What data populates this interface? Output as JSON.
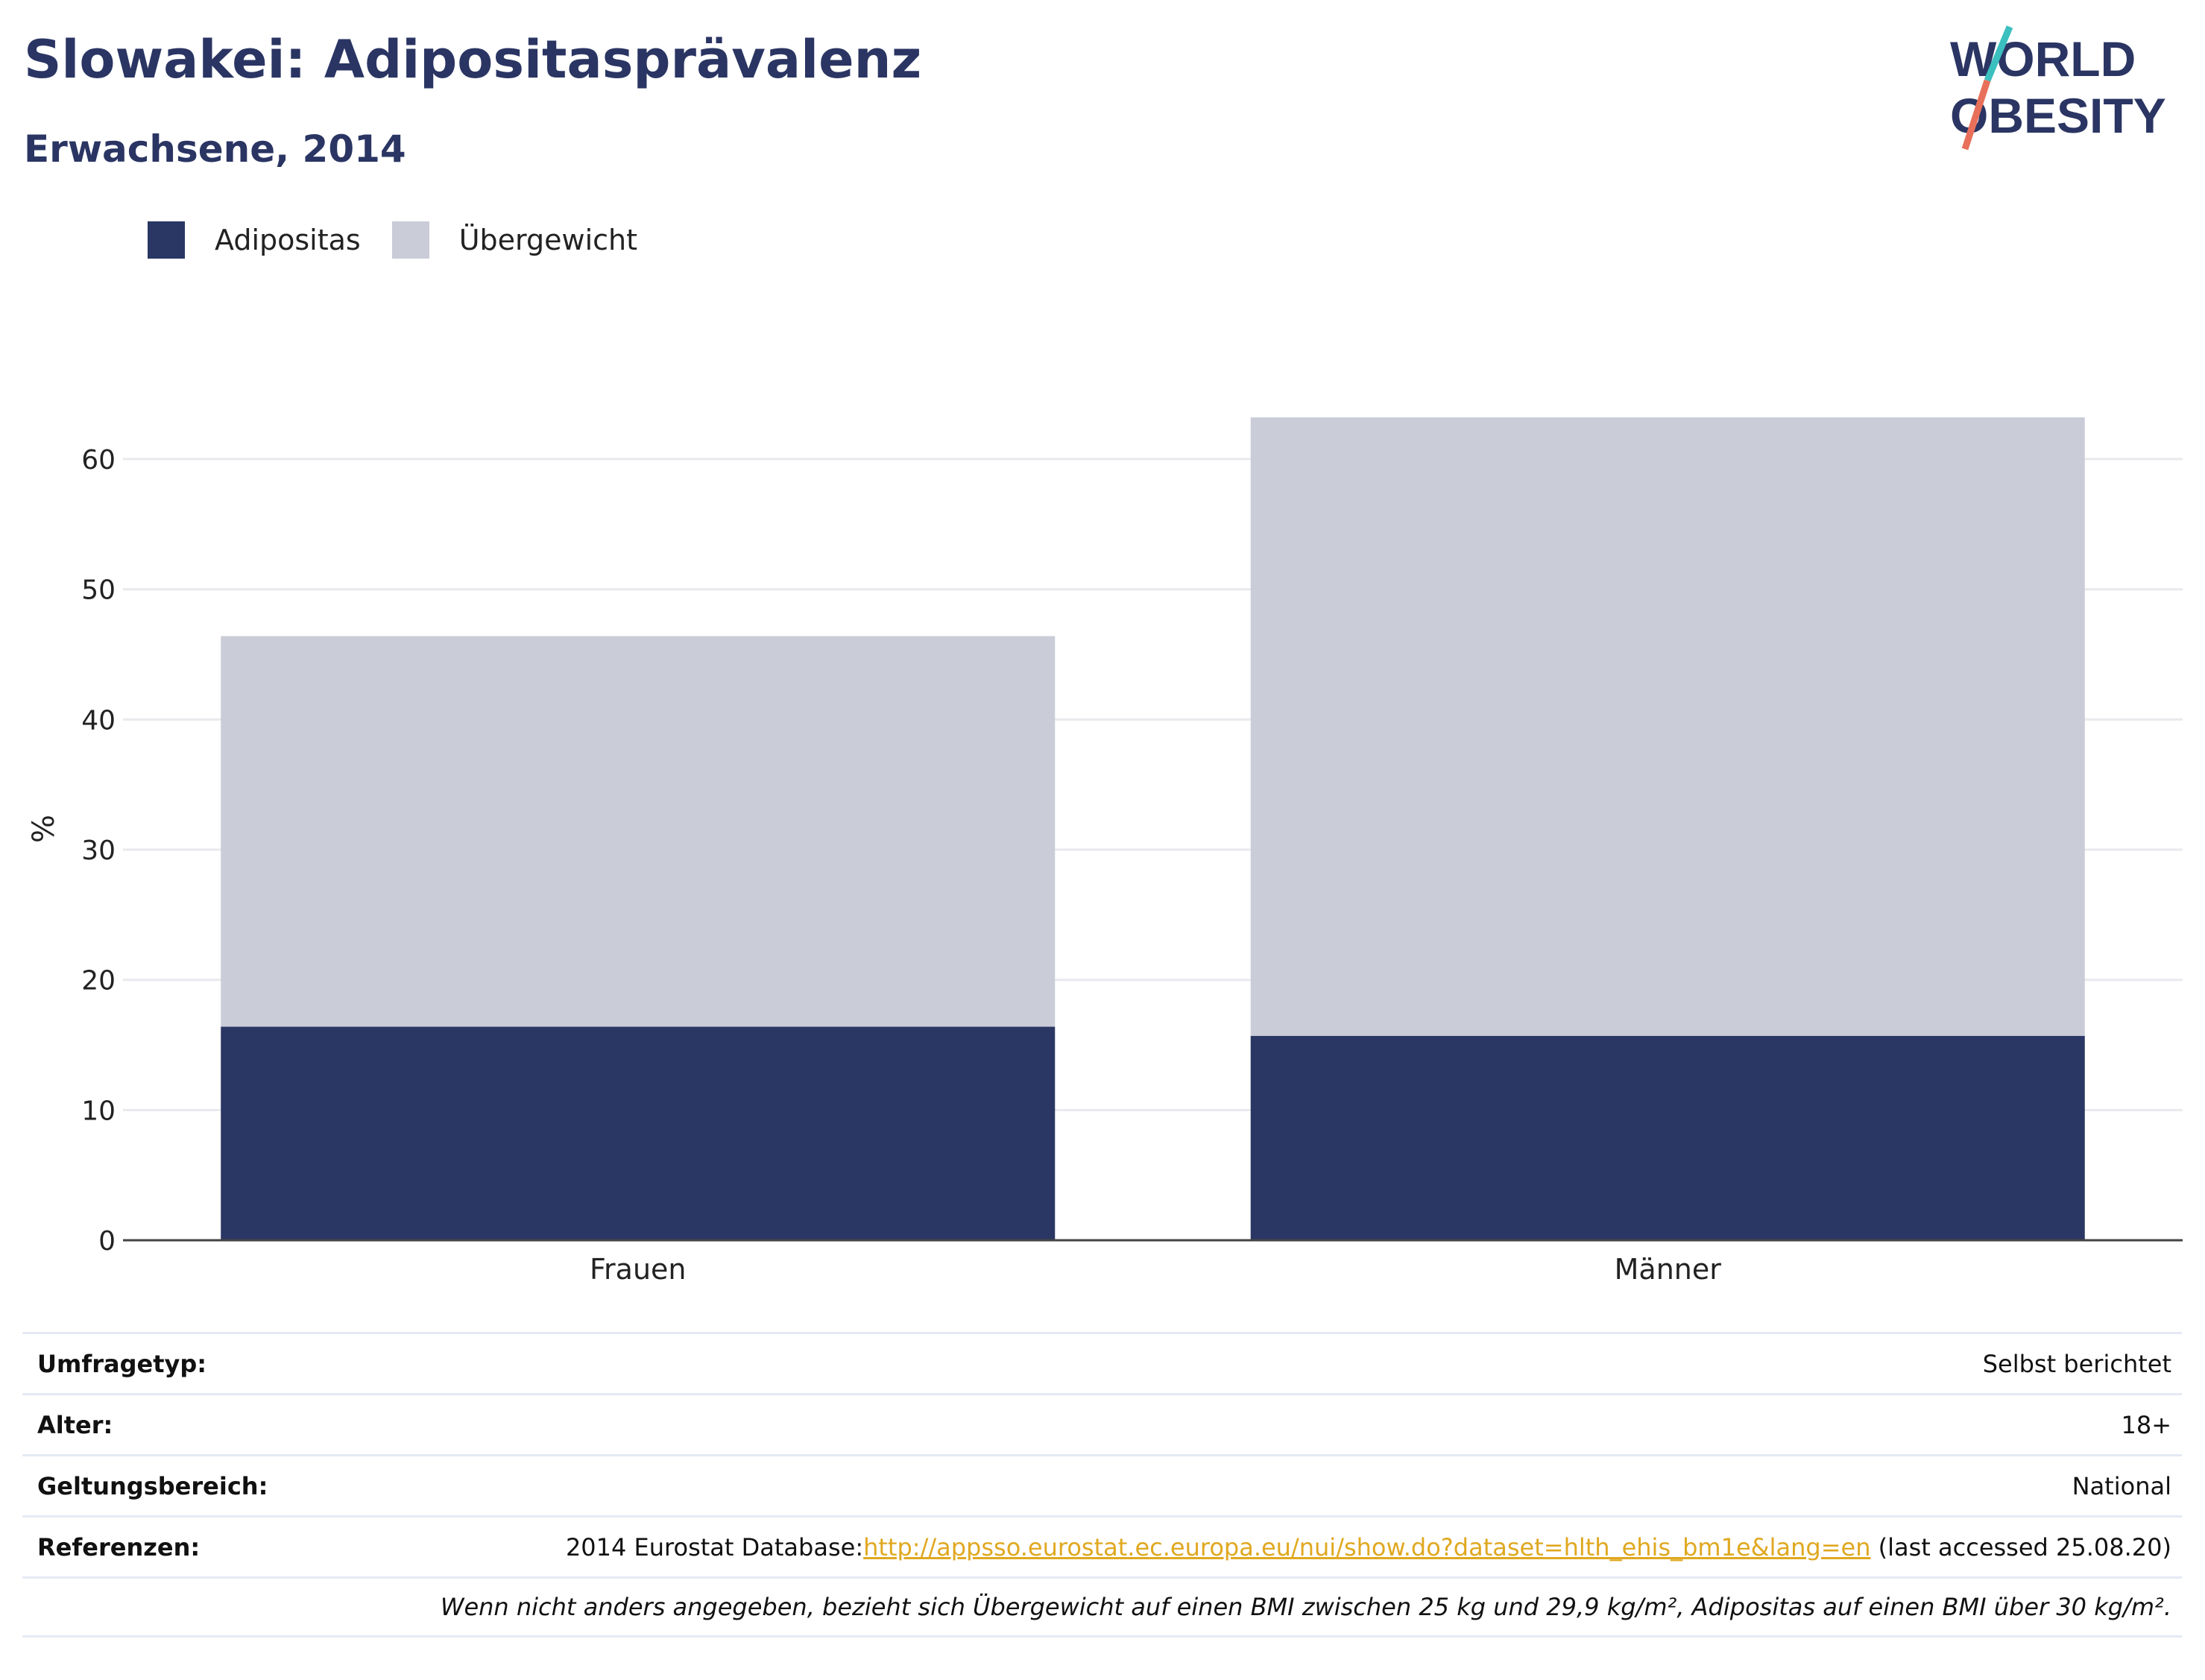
{
  "header": {
    "title": "Slowakei: Adipositasprävalenz",
    "subtitle": "Erwachsene, 2014"
  },
  "logo": {
    "line1": "WORLD",
    "line2": "OBESITY",
    "slash_color_top": "#3bbfbf",
    "slash_color_bottom": "#e8705a"
  },
  "legend": {
    "items": [
      {
        "label": "Adipositas",
        "color": "#2a3764"
      },
      {
        "label": "Übergewicht",
        "color": "#caccd8"
      }
    ]
  },
  "chart_data": {
    "type": "bar",
    "stacked": true,
    "categories": [
      "Frauen",
      "Männer"
    ],
    "series": [
      {
        "name": "Adipositas",
        "color": "#2a3764",
        "values": [
          16.4,
          15.7
        ]
      },
      {
        "name": "Übergewicht",
        "color": "#caccd8",
        "values": [
          30.0,
          47.5
        ]
      }
    ],
    "ylabel": "%",
    "ylim": [
      0,
      63.2
    ],
    "yticks": [
      0,
      10,
      20,
      30,
      40,
      50,
      60
    ],
    "grid": true,
    "legend_position": "top-left"
  },
  "info": {
    "rows": [
      {
        "label": "Umfragetyp:",
        "value": "Selbst berichtet"
      },
      {
        "label": "Alter:",
        "value": "18+"
      },
      {
        "label": "Geltungsbereich:",
        "value": "National"
      }
    ],
    "reference": {
      "label": "Referenzen:",
      "prefix": "2014 Eurostat Database:",
      "link": "http://appsso.eurostat.ec.europa.eu/nui/show.do?dataset=hlth_ehis_bm1e&lang=en",
      "suffix": " (last accessed 25.08.20)"
    },
    "note": "Wenn nicht anders angegeben, bezieht sich Übergewicht auf einen BMI zwischen 25 kg und 29,9 kg/m², Adipositas auf einen BMI über 30 kg/m²."
  }
}
